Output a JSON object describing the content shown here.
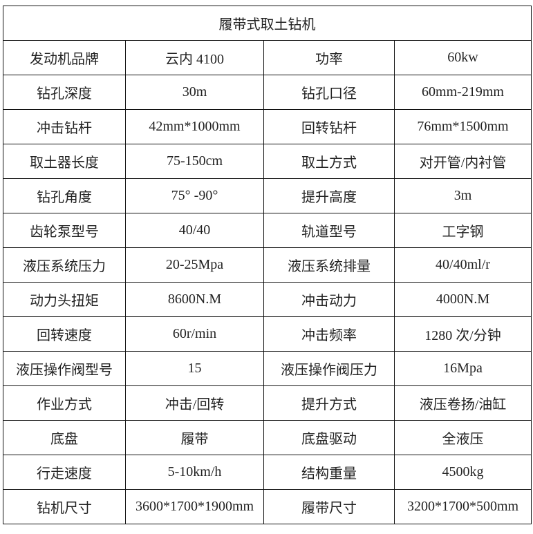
{
  "title": "履带式取土钻机",
  "rows": [
    [
      "发动机品牌",
      "云内 4100",
      "功率",
      "60kw"
    ],
    [
      "钻孔深度",
      "30m",
      "钻孔口径",
      "60mm-219mm"
    ],
    [
      "冲击钻杆",
      "42mm*1000mm",
      "回转钻杆",
      "76mm*1500mm"
    ],
    [
      "取土器长度",
      "75-150cm",
      "取土方式",
      "对开管/内衬管"
    ],
    [
      "钻孔角度",
      "75° -90°",
      "提升高度",
      "3m"
    ],
    [
      "齿轮泵型号",
      "40/40",
      "轨道型号",
      "工字钢"
    ],
    [
      "液压系统压力",
      "20-25Mpa",
      "液压系统排量",
      "40/40ml/r"
    ],
    [
      "动力头扭矩",
      "8600N.M",
      "冲击动力",
      "4000N.M"
    ],
    [
      "回转速度",
      "60r/min",
      "冲击频率",
      "1280 次/分钟"
    ],
    [
      "液压操作阀型号",
      "15",
      "液压操作阀压力",
      "16Mpa"
    ],
    [
      "作业方式",
      "冲击/回转",
      "提升方式",
      "液压卷扬/油缸"
    ],
    [
      "底盘",
      "履带",
      "底盘驱动",
      "全液压"
    ],
    [
      "行走速度",
      "5-10km/h",
      "结构重量",
      "4500kg"
    ],
    [
      "钻机尺寸",
      "3600*1700*1900mm",
      "履带尺寸",
      "3200*1700*500mm"
    ]
  ]
}
